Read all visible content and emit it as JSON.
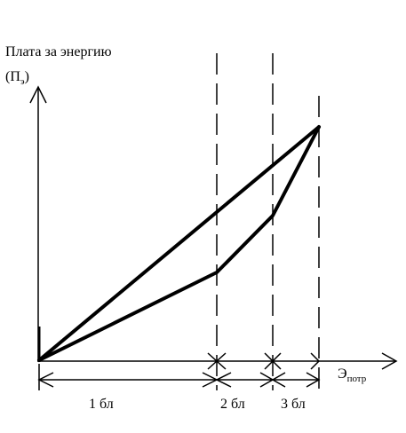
{
  "diagram": {
    "y_axis_label": {
      "line1": "Плата за энергию",
      "line2_open": "(П",
      "line2_sub": "э",
      "line2_close": ")"
    },
    "x_axis_label": {
      "main": "Э",
      "sub": "потр"
    },
    "segments": [
      {
        "label": "1 бл"
      },
      {
        "label": "2 бл"
      },
      {
        "label": "3 бл"
      }
    ],
    "colors": {
      "ink": "#000000",
      "background": "#ffffff"
    }
  }
}
